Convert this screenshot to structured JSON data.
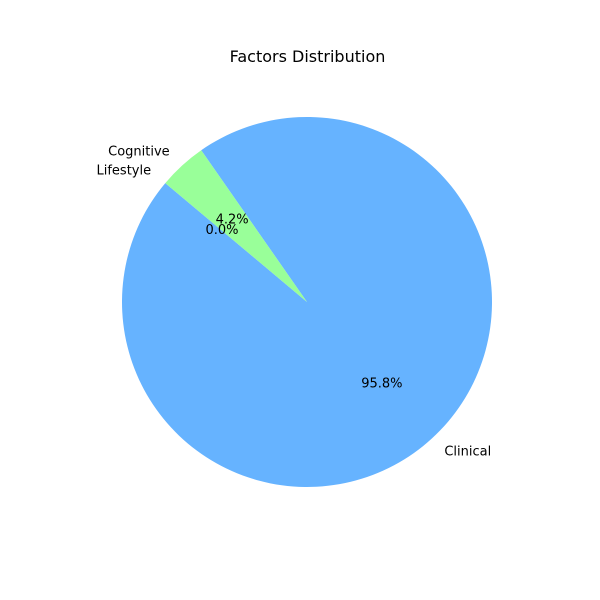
{
  "chart_data": {
    "type": "pie",
    "title": "Factors Distribution",
    "categories": [
      "Clinical",
      "Cognitive",
      "Lifestyle"
    ],
    "values": [
      95.8,
      4.2,
      0.0
    ],
    "labels": [
      "95.8%",
      "4.2%",
      "0.0%"
    ],
    "colors": [
      "#66b3ff",
      "#99ff99",
      "#ff9999"
    ],
    "start_angle_deg": 140,
    "direction": "counterclockwise",
    "legend": "none"
  }
}
